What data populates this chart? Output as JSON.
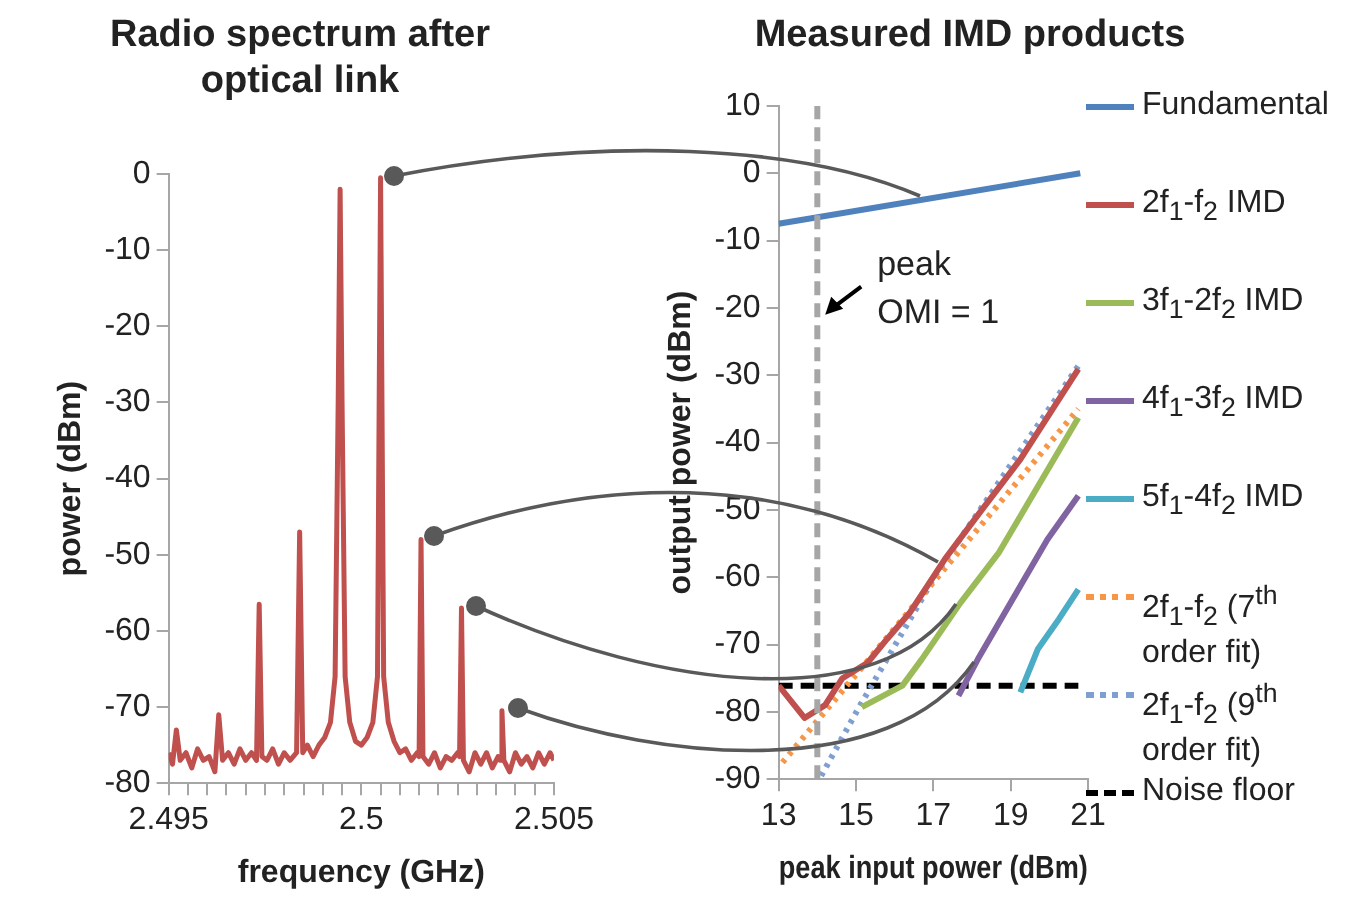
{
  "chart_data": [
    {
      "type": "line",
      "title": "Radio spectrum after optical link",
      "xlabel": "frequency (GHz)",
      "ylabel": "power (dBm)",
      "x": [
        2.495,
        2.4951,
        2.4952,
        2.4953,
        2.49545,
        2.4956,
        2.49575,
        2.4959,
        2.49605,
        2.4962,
        2.4963,
        2.4964,
        2.49655,
        2.4967,
        2.49685,
        2.497,
        2.49715,
        2.49728,
        2.49735,
        2.49742,
        2.49755,
        2.4977,
        2.49785,
        2.498,
        2.49815,
        2.49832,
        2.4984,
        2.49848,
        2.4986,
        2.49875,
        2.4989,
        2.49905,
        2.4992,
        2.49932,
        2.4994,
        2.49945,
        2.4995,
        2.49958,
        2.4997,
        2.49985,
        2.5,
        2.50015,
        2.5003,
        2.50042,
        2.5005,
        2.50058,
        2.5007,
        2.50085,
        2.501,
        2.50115,
        2.5013,
        2.50145,
        2.5015,
        2.50155,
        2.5016,
        2.50175,
        2.5019,
        2.50205,
        2.5022,
        2.50235,
        2.5025,
        2.50255,
        2.5026,
        2.50265,
        2.5028,
        2.50295,
        2.5031,
        2.50325,
        2.5034,
        2.50355,
        2.5036,
        2.50365,
        2.5037,
        2.50385,
        2.504,
        2.50415,
        2.5043,
        2.50445,
        2.5046,
        2.50475,
        2.5049,
        2.505
      ],
      "series": [
        {
          "color": "#c0504d",
          "values": [
            -76,
            -77.5,
            -73,
            -77,
            -76,
            -78,
            -75.5,
            -77,
            -76.5,
            -78.5,
            -71,
            -77,
            -76,
            -77.5,
            -75.5,
            -77,
            -76,
            -77,
            -56.5,
            -76.5,
            -77,
            -75.5,
            -77.5,
            -76,
            -77,
            -76,
            -47,
            -76,
            -75,
            -76.5,
            -75,
            -74,
            -72,
            -66,
            -30,
            -2,
            -30,
            -66,
            -72,
            -74.5,
            -75,
            -74,
            -72,
            -66,
            -0.5,
            -66,
            -72,
            -74.5,
            -76,
            -75.5,
            -77,
            -76,
            -76.5,
            -48,
            -76.5,
            -77.5,
            -76,
            -78,
            -76.5,
            -77,
            -76,
            -76.5,
            -57,
            -77,
            -78.5,
            -76,
            -77.5,
            -76,
            -78,
            -76.5,
            -77,
            -70.5,
            -77,
            -78.5,
            -76,
            -77.5,
            -76.5,
            -78,
            -76,
            -77.5,
            -76,
            -77
          ]
        }
      ],
      "xlim": [
        2.495,
        2.505
      ],
      "xticks": [
        2.495,
        {
          "value": 2.4955,
          "label": null
        },
        {
          "value": 2.496,
          "label": null
        },
        {
          "value": 2.4965,
          "label": null
        },
        {
          "value": 2.497,
          "label": null
        },
        {
          "value": 2.4975,
          "label": null
        },
        {
          "value": 2.498,
          "label": null
        },
        {
          "value": 2.4985,
          "label": null
        },
        {
          "value": 2.499,
          "label": null
        },
        {
          "value": 2.4995,
          "label": null
        },
        2.5,
        {
          "value": 2.5005,
          "label": null
        },
        {
          "value": 2.501,
          "label": null
        },
        {
          "value": 2.5015,
          "label": null
        },
        {
          "value": 2.502,
          "label": null
        },
        {
          "value": 2.5025,
          "label": null
        },
        {
          "value": 2.503,
          "label": null
        },
        {
          "value": 2.5035,
          "label": null
        },
        {
          "value": 2.504,
          "label": null
        },
        {
          "value": 2.5045,
          "label": null
        },
        2.505
      ],
      "ylim": [
        -80,
        0
      ],
      "yticks": [
        -80,
        -70,
        -60,
        -50,
        -40,
        -30,
        -20,
        -10,
        0
      ],
      "grid": false,
      "legend": false,
      "marker": "none",
      "line_style": "solid"
    },
    {
      "type": "line",
      "title": "Measured IMD products",
      "xlabel": "peak input power (dBm)",
      "ylabel": "output power (dBm)",
      "series": [
        {
          "name": "Fundamental",
          "color": "#4f81bd",
          "x": [
            13,
            20.8
          ],
          "values": [
            -7.5,
            0
          ]
        },
        {
          "name": "2f$_{1}$-f$_{2}$ IMD",
          "color": "#c0504d",
          "x": [
            13,
            13.67,
            14.2,
            14.65,
            15.3,
            15.8,
            16.4,
            17.3,
            18.2,
            19.25,
            20.75
          ],
          "values": [
            -76.1,
            -80.9,
            -79,
            -75,
            -72.7,
            -69.2,
            -65.2,
            -57.3,
            -50.4,
            -42.5,
            -29.1
          ]
        },
        {
          "name": "3f$_{1}$-2f$_{2}$ IMD",
          "color": "#9bbb59",
          "x": [
            15.15,
            16.2,
            16.7,
            17.7,
            18.7,
            20.75
          ],
          "values": [
            -79.3,
            -76.1,
            -72.2,
            -63.8,
            -56.3,
            -36.3
          ]
        },
        {
          "name": "4f$_{1}$-3f$_{2}$ IMD",
          "color": "#8064a2",
          "x": [
            17.65,
            18.15,
            19.25,
            19.95,
            20.75
          ],
          "values": [
            -77.6,
            -72.2,
            -61.3,
            -54.4,
            -47.9
          ]
        },
        {
          "name": "5f$_{1}$-4f$_{2}$ IMD",
          "color": "#4bacc6",
          "x": [
            19.25,
            19.7,
            20.25,
            20.75
          ],
          "values": [
            -77.1,
            -70.7,
            -66.2,
            -61.8
          ]
        },
        {
          "name": "2f$_{1}$-f$_{2}$ (7$^{th}$ order fit)",
          "color": "#f79646",
          "line_style": "dotted",
          "x": [
            13.1,
            20.75
          ],
          "values": [
            -87.5,
            -35
          ]
        },
        {
          "name": "2f$_{1}$-f$_{2}$ (9$^{th}$ order fit)",
          "color": "#7f9fd0",
          "line_style": "dotted",
          "x": [
            14.1,
            15.1,
            17.1,
            20.75
          ],
          "values": [
            -89.5,
            -79.1,
            -59.3,
            -28.6
          ]
        },
        {
          "name": "Noise floor",
          "color": "#000000",
          "line_style": "dashed",
          "x": [
            13,
            20.75
          ],
          "values": [
            -76.1,
            -76.1
          ]
        }
      ],
      "xlim": [
        13,
        21
      ],
      "xticks": [
        13,
        15,
        17,
        19,
        21
      ],
      "ylim": [
        -90,
        10
      ],
      "yticks": [
        -90,
        -80,
        -70,
        -60,
        -50,
        -40,
        -30,
        -20,
        -10,
        0,
        10
      ],
      "ref_lines": [
        {
          "axis": "x",
          "value": 14,
          "color": "#a6a6a6",
          "line_style": "dashed"
        }
      ],
      "annotations": [
        {
          "text": "peak\nOMI = 1",
          "x": 14.1,
          "y": -21
        }
      ],
      "grid": false,
      "legend": "right",
      "marker": "none",
      "line_style": "solid"
    }
  ]
}
